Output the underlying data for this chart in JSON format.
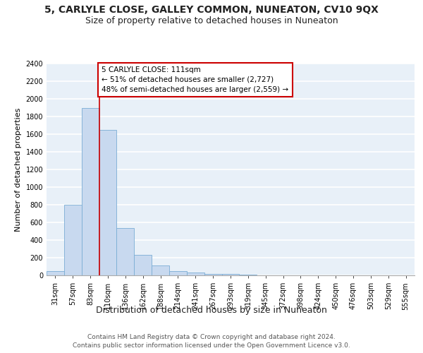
{
  "title": "5, CARLYLE CLOSE, GALLEY COMMON, NUNEATON, CV10 9QX",
  "subtitle": "Size of property relative to detached houses in Nuneaton",
  "xlabel": "Distribution of detached houses by size in Nuneaton",
  "ylabel": "Number of detached properties",
  "categories": [
    "31sqm",
    "57sqm",
    "83sqm",
    "110sqm",
    "136sqm",
    "162sqm",
    "188sqm",
    "214sqm",
    "241sqm",
    "267sqm",
    "293sqm",
    "319sqm",
    "345sqm",
    "372sqm",
    "398sqm",
    "424sqm",
    "450sqm",
    "476sqm",
    "503sqm",
    "529sqm",
    "555sqm"
  ],
  "values": [
    50,
    800,
    1900,
    1650,
    540,
    235,
    110,
    50,
    30,
    20,
    15,
    5,
    0,
    0,
    0,
    0,
    0,
    0,
    0,
    0,
    0
  ],
  "bar_color": "#c8d9ef",
  "bar_edge_color": "#7aadd4",
  "property_line_color": "#cc0000",
  "annotation_line1": "5 CARLYLE CLOSE: 111sqm",
  "annotation_line2": "← 51% of detached houses are smaller (2,727)",
  "annotation_line3": "48% of semi-detached houses are larger (2,559) →",
  "annotation_box_color": "#ffffff",
  "annotation_box_edge": "#cc0000",
  "ylim": [
    0,
    2400
  ],
  "yticks": [
    0,
    200,
    400,
    600,
    800,
    1000,
    1200,
    1400,
    1600,
    1800,
    2000,
    2200,
    2400
  ],
  "footer_line1": "Contains HM Land Registry data © Crown copyright and database right 2024.",
  "footer_line2": "Contains public sector information licensed under the Open Government Licence v3.0.",
  "background_color": "#e8f0f8",
  "grid_color": "#ffffff",
  "title_fontsize": 10,
  "subtitle_fontsize": 9,
  "xlabel_fontsize": 9,
  "ylabel_fontsize": 8,
  "tick_fontsize": 7,
  "annotation_fontsize": 7.5,
  "footer_fontsize": 6.5
}
